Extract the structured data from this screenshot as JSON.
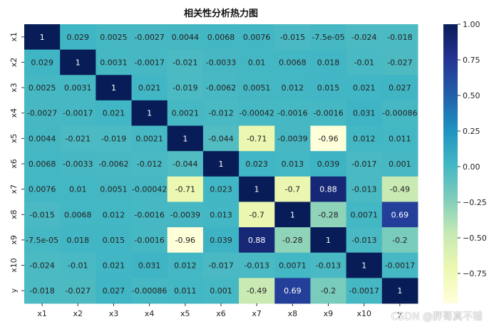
{
  "chart_data": {
    "type": "heatmap",
    "title": "相关性分析热力图",
    "x_categories": [
      "x1",
      "x2",
      "x3",
      "x4",
      "x5",
      "x6",
      "x7",
      "x8",
      "x9",
      "x10",
      "y"
    ],
    "y_categories": [
      "x1",
      "x2",
      "x3",
      "x4",
      "x5",
      "x6",
      "x7",
      "x8",
      "x9",
      "x10",
      "y"
    ],
    "values": [
      [
        1,
        0.029,
        0.0025,
        -0.0027,
        0.0044,
        0.0068,
        0.0076,
        -0.015,
        -7.5e-05,
        -0.024,
        -0.018
      ],
      [
        0.029,
        1,
        0.0031,
        -0.0017,
        -0.021,
        -0.0033,
        0.01,
        0.0068,
        0.018,
        -0.01,
        -0.027
      ],
      [
        0.0025,
        0.0031,
        1,
        0.021,
        -0.019,
        -0.0062,
        0.0051,
        0.012,
        0.015,
        0.021,
        0.027
      ],
      [
        -0.0027,
        -0.0017,
        0.021,
        1,
        0.0021,
        -0.012,
        -0.00042,
        -0.0016,
        -0.0016,
        0.031,
        -0.00086
      ],
      [
        0.0044,
        -0.021,
        -0.019,
        0.0021,
        1,
        -0.044,
        -0.71,
        -0.0039,
        -0.96,
        0.012,
        0.011
      ],
      [
        0.0068,
        -0.0033,
        -0.0062,
        -0.012,
        -0.044,
        1,
        0.023,
        0.013,
        0.039,
        -0.017,
        0.001
      ],
      [
        0.0076,
        0.01,
        0.0051,
        -0.00042,
        -0.71,
        0.023,
        1,
        -0.7,
        0.88,
        -0.013,
        -0.49
      ],
      [
        -0.015,
        0.0068,
        0.012,
        -0.0016,
        -0.0039,
        0.013,
        -0.7,
        1,
        -0.28,
        0.0071,
        0.69
      ],
      [
        -7.5e-05,
        0.018,
        0.015,
        -0.0016,
        -0.96,
        0.039,
        0.88,
        -0.28,
        1,
        -0.013,
        -0.2
      ],
      [
        -0.024,
        -0.01,
        0.021,
        0.031,
        0.012,
        -0.017,
        -0.013,
        0.0071,
        -0.013,
        1,
        -0.0017
      ],
      [
        -0.018,
        -0.027,
        0.027,
        -0.00086,
        0.011,
        0.001,
        -0.49,
        0.69,
        -0.2,
        -0.0017,
        1
      ]
    ],
    "labels": [
      [
        "1",
        "0.029",
        "0.0025",
        "-0.0027",
        "0.0044",
        "0.0068",
        "0.0076",
        "-0.015",
        "-7.5e-05",
        "-0.024",
        "-0.018"
      ],
      [
        "0.029",
        "1",
        "0.0031",
        "-0.0017",
        "-0.021",
        "-0.0033",
        "0.01",
        "0.0068",
        "0.018",
        "-0.01",
        "-0.027"
      ],
      [
        "0.0025",
        "0.0031",
        "1",
        "0.021",
        "-0.019",
        "-0.0062",
        "0.0051",
        "0.012",
        "0.015",
        "0.021",
        "0.027"
      ],
      [
        "-0.0027",
        "-0.0017",
        "0.021",
        "1",
        "0.0021",
        "-0.012",
        "-0.00042",
        "-0.0016",
        "-0.0016",
        "0.031",
        "-0.00086"
      ],
      [
        "0.0044",
        "-0.021",
        "-0.019",
        "0.0021",
        "1",
        "-0.044",
        "-0.71",
        "-0.0039",
        "-0.96",
        "0.012",
        "0.011"
      ],
      [
        "0.0068",
        "-0.0033",
        "-0.0062",
        "-0.012",
        "-0.044",
        "1",
        "0.023",
        "0.013",
        "0.039",
        "-0.017",
        "0.001"
      ],
      [
        "0.0076",
        "0.01",
        "0.0051",
        "-0.00042",
        "-0.71",
        "0.023",
        "1",
        "-0.7",
        "0.88",
        "-0.013",
        "-0.49"
      ],
      [
        "-0.015",
        "0.0068",
        "0.012",
        "-0.0016",
        "-0.0039",
        "0.013",
        "-0.7",
        "1",
        "-0.28",
        "0.0071",
        "0.69"
      ],
      [
        "-7.5e-05",
        "0.018",
        "0.015",
        "-0.0016",
        "-0.96",
        "0.039",
        "0.88",
        "-0.28",
        "1",
        "-0.013",
        "-0.2"
      ],
      [
        "-0.024",
        "-0.01",
        "0.021",
        "0.031",
        "0.012",
        "-0.017",
        "-0.013",
        "0.0071",
        "-0.013",
        "1",
        "-0.0017"
      ],
      [
        "-0.018",
        "-0.027",
        "0.027",
        "-0.00086",
        "0.011",
        "0.001",
        "-0.49",
        "0.69",
        "-0.2",
        "-0.0017",
        "1"
      ]
    ],
    "colormap": "YlGnBu",
    "colormap_stops": [
      "#ffffd9",
      "#edf8b1",
      "#c7e9b4",
      "#7fcdbb",
      "#41b6c4",
      "#1d91c0",
      "#225ea8",
      "#253494",
      "#081d58"
    ],
    "vmin": -0.96,
    "vmax": 1.0,
    "colorbar_ticks": [
      1.0,
      0.75,
      0.5,
      0.25,
      0.0,
      -0.25,
      -0.5,
      -0.75
    ],
    "colorbar_tick_labels": [
      "1.00",
      "0.75",
      "0.50",
      "0.25",
      "0.00",
      "−0.25",
      "−0.50",
      "−0.75"
    ],
    "grid": false,
    "legend": "colorbar-right"
  },
  "watermark": "CSDN @胖哥真不错"
}
